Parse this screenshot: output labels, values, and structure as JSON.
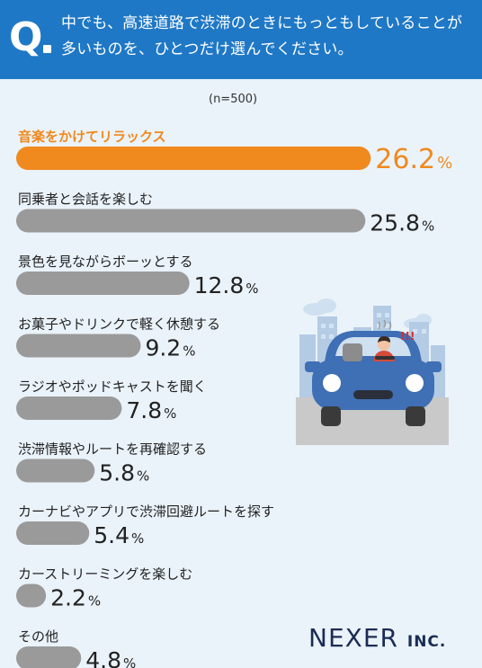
{
  "header": {
    "q_letter": "Q",
    "question": "中でも、高速道路で渋滞のときにもっともしていることが多いものを、ひとつだけ選んでください。"
  },
  "sample_label": "(n=500)",
  "brand": {
    "name": "NEXER",
    "suffix": "INC."
  },
  "illustration": {
    "icon": "car-driver-traffic-illustration",
    "exclaim": "!!!"
  },
  "colors": {
    "header": "#1f78c6",
    "highlight": "#f0891e",
    "bar": "#9a9a9a",
    "background": "#eaf3fa"
  },
  "chart_data": {
    "type": "bar",
    "orientation": "horizontal",
    "unit": "%",
    "categories": [
      "音楽をかけてリラックス",
      "同乗者と会話を楽しむ",
      "景色を見ながらボーッとする",
      "お菓子やドリンクで軽く休憩する",
      "ラジオやポッドキャストを聞く",
      "渋滞情報やルートを再確認する",
      "カーナビやアプリで渋滞回避ルートを探す",
      "カーストリーミングを楽しむ",
      "その他"
    ],
    "values": [
      26.2,
      25.8,
      12.8,
      9.2,
      7.8,
      5.8,
      5.4,
      2.2,
      4.8
    ],
    "value_labels": [
      "26.2",
      "25.8",
      "12.8",
      "9.2",
      "7.8",
      "5.8",
      "5.4",
      "2.2",
      "4.8"
    ],
    "highlight_index": 0
  }
}
